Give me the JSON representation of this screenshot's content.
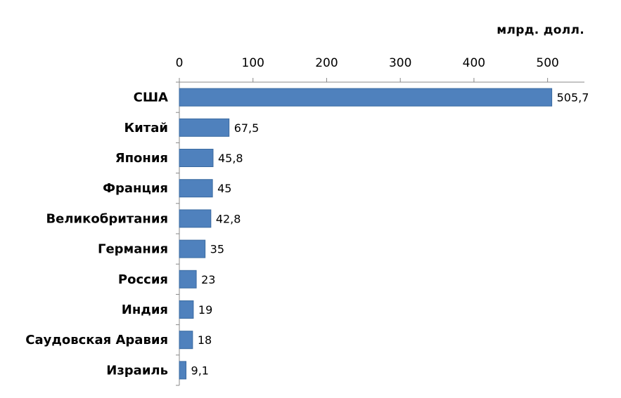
{
  "chart_data": {
    "type": "bar",
    "orientation": "horizontal",
    "unit_label": "млрд. долл.",
    "categories": [
      "США",
      "Китай",
      "Япония",
      "Франция",
      "Великобритания",
      "Германия",
      "Россия",
      "Индия",
      "Саудовская Аравия",
      "Израиль"
    ],
    "values": [
      505.7,
      67.5,
      45.8,
      45,
      42.8,
      35,
      23,
      19,
      18,
      9.1
    ],
    "data_labels": [
      "505,7",
      "67,5",
      "45,8",
      "45",
      "42,8",
      "35",
      "23",
      "19",
      "18",
      "9,1"
    ],
    "xlim": [
      0,
      550
    ],
    "x_ticks": [
      0,
      100,
      200,
      300,
      400,
      500
    ],
    "x_axis_position": "top",
    "grid": false,
    "legend": "none",
    "bar_color": "#4f81bd",
    "bar_edge_color": "#3a6aa0"
  }
}
